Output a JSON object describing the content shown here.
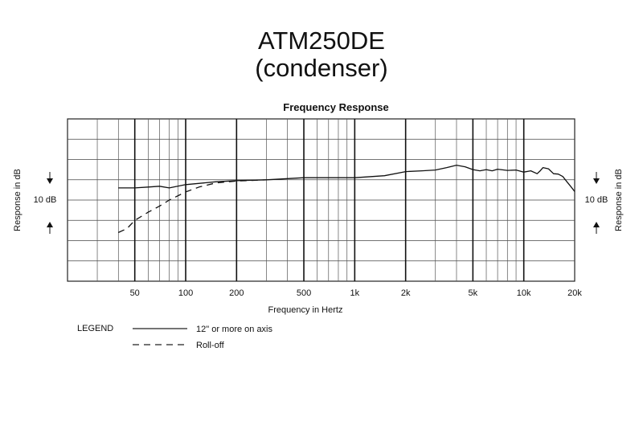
{
  "title_line1": "ATM250DE",
  "title_line2": "(condenser)",
  "chart_data": {
    "type": "line",
    "title": "Frequency Response",
    "xlabel": "Frequency in Hertz",
    "ylabel": "Response in dB",
    "x_scale": "log",
    "xlim": [
      20,
      20000
    ],
    "ylim": [
      -25,
      15
    ],
    "x_ticks": [
      {
        "value": 50,
        "label": "50"
      },
      {
        "value": 100,
        "label": "100"
      },
      {
        "value": 200,
        "label": "200"
      },
      {
        "value": 500,
        "label": "500"
      },
      {
        "value": 1000,
        "label": "1k"
      },
      {
        "value": 2000,
        "label": "2k"
      },
      {
        "value": 5000,
        "label": "5k"
      },
      {
        "value": 10000,
        "label": "10k"
      },
      {
        "value": 20000,
        "label": "20k"
      }
    ],
    "scale_indicator": "10 dB",
    "grid": true,
    "legend": {
      "title": "LEGEND",
      "position": "bottom-left",
      "entries": [
        "12\" or more on axis",
        "Roll-off"
      ]
    },
    "series": [
      {
        "name": "12\" or more on axis",
        "style": "solid",
        "x": [
          40,
          50,
          60,
          70,
          80,
          100,
          150,
          200,
          300,
          500,
          700,
          1000,
          1500,
          2000,
          2500,
          3000,
          3500,
          4000,
          4500,
          5000,
          5500,
          6000,
          6500,
          7000,
          8000,
          9000,
          10000,
          11000,
          12000,
          12500,
          13000,
          14000,
          15000,
          16000,
          17000,
          18000,
          19000,
          20000
        ],
        "y": [
          -2,
          -2,
          -1.8,
          -1.6,
          -2,
          -1.2,
          -0.5,
          -0.2,
          0,
          0.5,
          0.5,
          0.5,
          1,
          2,
          2.2,
          2.4,
          3,
          3.6,
          3.2,
          2.5,
          2.2,
          2.5,
          2.2,
          2.6,
          2.3,
          2.4,
          1.9,
          2.2,
          1.5,
          2.2,
          3,
          2.7,
          1.5,
          1.4,
          0.8,
          -0.5,
          -1.7,
          -2.9
        ]
      },
      {
        "name": "Roll-off",
        "style": "dashed",
        "x": [
          40,
          45,
          50,
          60,
          70,
          80,
          100,
          120,
          150,
          200,
          300
        ],
        "y": [
          -13,
          -12,
          -10,
          -8,
          -6.5,
          -5,
          -3,
          -1.8,
          -0.8,
          -0.3,
          0
        ]
      }
    ]
  }
}
